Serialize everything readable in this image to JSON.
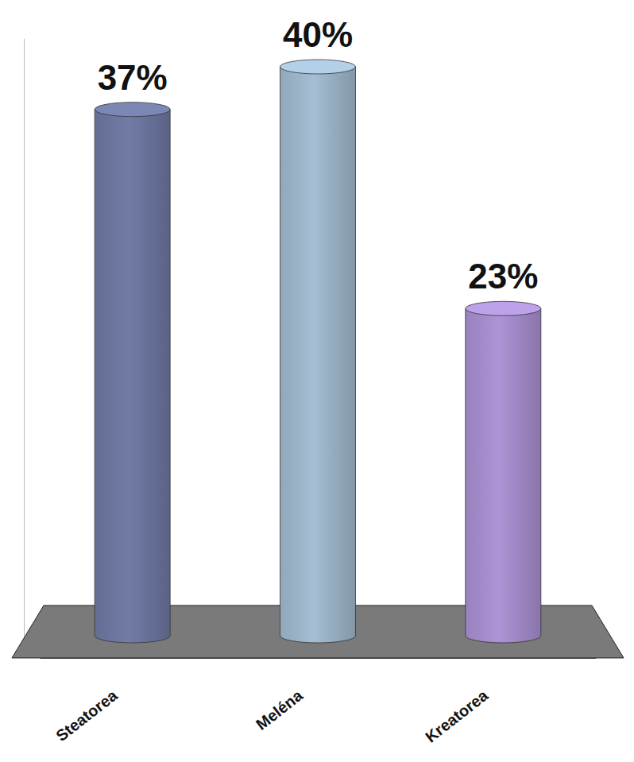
{
  "chart_data": {
    "type": "bar",
    "categories": [
      "Steatorea",
      "Meléna",
      "Kreatorea"
    ],
    "values": [
      37,
      40,
      23
    ],
    "value_labels": [
      "37%",
      "40%",
      "23%"
    ],
    "colors": [
      "#6b769e",
      "#9cb4c9",
      "#a48ccb"
    ],
    "ylim": [
      0,
      42
    ],
    "yticks": [],
    "data_labels": true,
    "tick_labels": "x"
  }
}
